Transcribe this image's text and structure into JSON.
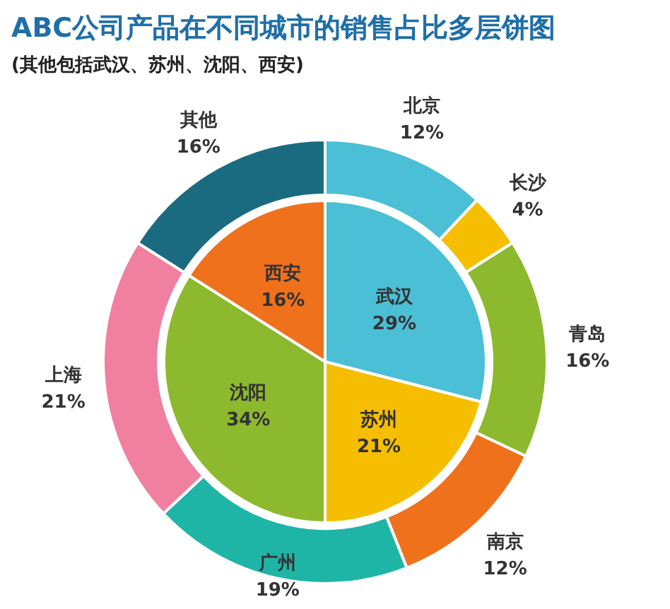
{
  "chart_data": [
    {
      "type": "donut",
      "title": "ABC公司产品在不同城市的销售占比多层饼图",
      "subtitle": "(其他包括武汉、苏州、沈阳、西安)",
      "categories": [
        "北京",
        "长沙",
        "青岛",
        "南京",
        "广州",
        "上海",
        "其他"
      ],
      "values": [
        12,
        4,
        16,
        12,
        19,
        21,
        16
      ],
      "colors": [
        "#4bbfd6",
        "#f5be00",
        "#8db92e",
        "#f0711c",
        "#1fb5a6",
        "#f07fa0",
        "#1b6b80"
      ],
      "value_labels": [
        "12%",
        "4%",
        "16%",
        "12%",
        "19%",
        "21%",
        "16%"
      ]
    },
    {
      "type": "pie",
      "categories": [
        "武汉",
        "苏州",
        "沈阳",
        "西安"
      ],
      "values": [
        29,
        21,
        34,
        16
      ],
      "colors": [
        "#4bbfd6",
        "#f5be00",
        "#8db92e",
        "#f0711c"
      ],
      "value_labels": [
        "29%",
        "21%",
        "34%",
        "16%"
      ]
    }
  ]
}
